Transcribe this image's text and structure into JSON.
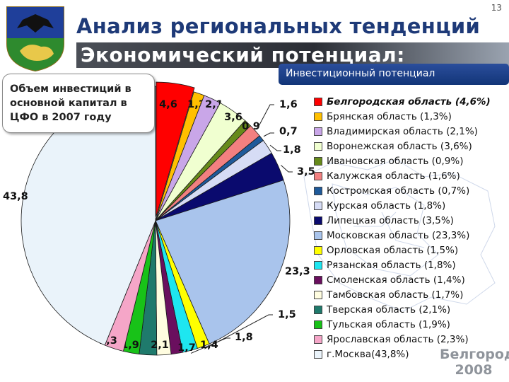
{
  "slide_number": "13",
  "title": "Анализ региональных тенденций",
  "banner": "Экономический потенциал:",
  "subtitle_box": "Инвестиционный потенциал",
  "callout": "Объем инвестиций в\nосновной капитал в\nЦФО в 2007 году",
  "brand": {
    "line1": "Белгород",
    "line2": "2008"
  },
  "coat_of_arms_icon": "belgorod-coat-of-arms-icon",
  "chart_data": {
    "type": "pie",
    "title": "Инвестиционный потенциал",
    "start_angle_deg": 0,
    "direction": "clockwise",
    "slices": [
      {
        "label": "Белгородская область (4,6%)",
        "value": 4.6,
        "data_label": "4,6",
        "color": "#ff0000"
      },
      {
        "label": "Брянская область (1,3%)",
        "value": 1.3,
        "data_label": "1,3",
        "color": "#ffc000"
      },
      {
        "label": "Владимирская область (2,1%)",
        "value": 2.1,
        "data_label": "2,1",
        "color": "#c9a6e8"
      },
      {
        "label": "Воронежская область (3,6%)",
        "value": 3.6,
        "data_label": "3,6",
        "color": "#f0ffd0"
      },
      {
        "label": "Ивановская область (0,9%)",
        "value": 0.9,
        "data_label": "0,9",
        "color": "#668a1a"
      },
      {
        "label": "Калужская область (1,6%)",
        "value": 1.6,
        "data_label": "1,6",
        "color": "#f28080"
      },
      {
        "label": "Костромская область (0,7%)",
        "value": 0.7,
        "data_label": "0,7",
        "color": "#1f5a9a"
      },
      {
        "label": "Курская область (1,8%)",
        "value": 1.8,
        "data_label": "1,8",
        "color": "#d6dcf5"
      },
      {
        "label": "Липецкая область (3,5%)",
        "value": 3.5,
        "data_label": "3,5",
        "color": "#0a0a6e"
      },
      {
        "label": "Московская область (23,3%)",
        "value": 23.3,
        "data_label": "23,3",
        "color": "#a9c4ec"
      },
      {
        "label": "Орловская область (1,5%)",
        "value": 1.5,
        "data_label": "1,5",
        "color": "#ffff00"
      },
      {
        "label": "Рязанская область (1,8%)",
        "value": 1.8,
        "data_label": "1,8",
        "color": "#1ee6f0"
      },
      {
        "label": "Смоленская область (1,4%)",
        "value": 1.4,
        "data_label": "1,4",
        "color": "#6a0f5e"
      },
      {
        "label": "Тамбовская область (1,7%)",
        "value": 1.7,
        "data_label": "1,7",
        "color": "#fffde0"
      },
      {
        "label": "Тверская область (2,1%)",
        "value": 2.1,
        "data_label": "2,1",
        "color": "#1f7a6c"
      },
      {
        "label": "Тульская область (1,9%)",
        "value": 1.9,
        "data_label": "1,9",
        "color": "#18c218"
      },
      {
        "label": "Ярославская область (2,3%)",
        "value": 2.3,
        "data_label": "2,3",
        "color": "#f5a6c8"
      },
      {
        "label": "г.Москва(43,8%)",
        "value": 43.8,
        "data_label": "43,8",
        "color": "#eaf3fa"
      }
    ],
    "highlighted_slice": "Белгородская область (4,6%)",
    "legend_placement": "right"
  }
}
